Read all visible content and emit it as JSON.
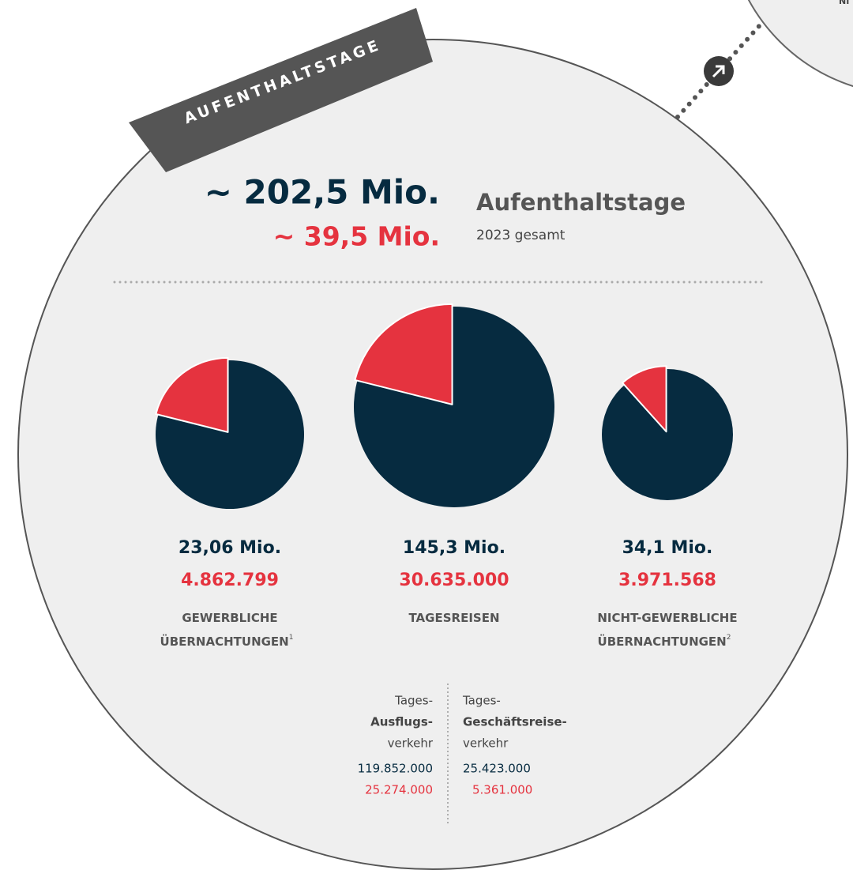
{
  "tab": "AUFENTHALTSTAGE",
  "corner_text": "NI",
  "headline": {
    "total": "~ 202,5 Mio.",
    "part": "~ 39,5 Mio.",
    "title": "Aufenthaltstage",
    "subtitle": "2023 gesamt"
  },
  "colors": {
    "total": "#062b40",
    "part": "#e5333f"
  },
  "pies": [
    {
      "total": 23060000,
      "total_label": "23,06 Mio.",
      "part": 4862799,
      "part_label": "4.862.799",
      "label_lines": [
        "GEWERBLICHE",
        "ÜBERNACHTUNGEN"
      ],
      "footnote": "1"
    },
    {
      "total": 145300000,
      "total_label": "145,3 Mio.",
      "part": 30635000,
      "part_label": "30.635.000",
      "label_lines": [
        "TAGESREISEN"
      ]
    },
    {
      "total": 34100000,
      "total_label": "34,1 Mio.",
      "part": 3971568,
      "part_label": "3.971.568",
      "label_lines": [
        "NICHT-GEWERBLICHE",
        "ÜBERNACHTUNGEN"
      ],
      "footnote": "2"
    }
  ],
  "breakdown": [
    {
      "lines": [
        "Tages-",
        "Ausflugs-",
        "verkehr"
      ],
      "total": "119.852.000",
      "part": "25.274.000"
    },
    {
      "lines": [
        "Tages-",
        "Geschäftsreise-",
        "verkehr"
      ],
      "total": "25.423.000",
      "part": "5.361.000"
    }
  ]
}
